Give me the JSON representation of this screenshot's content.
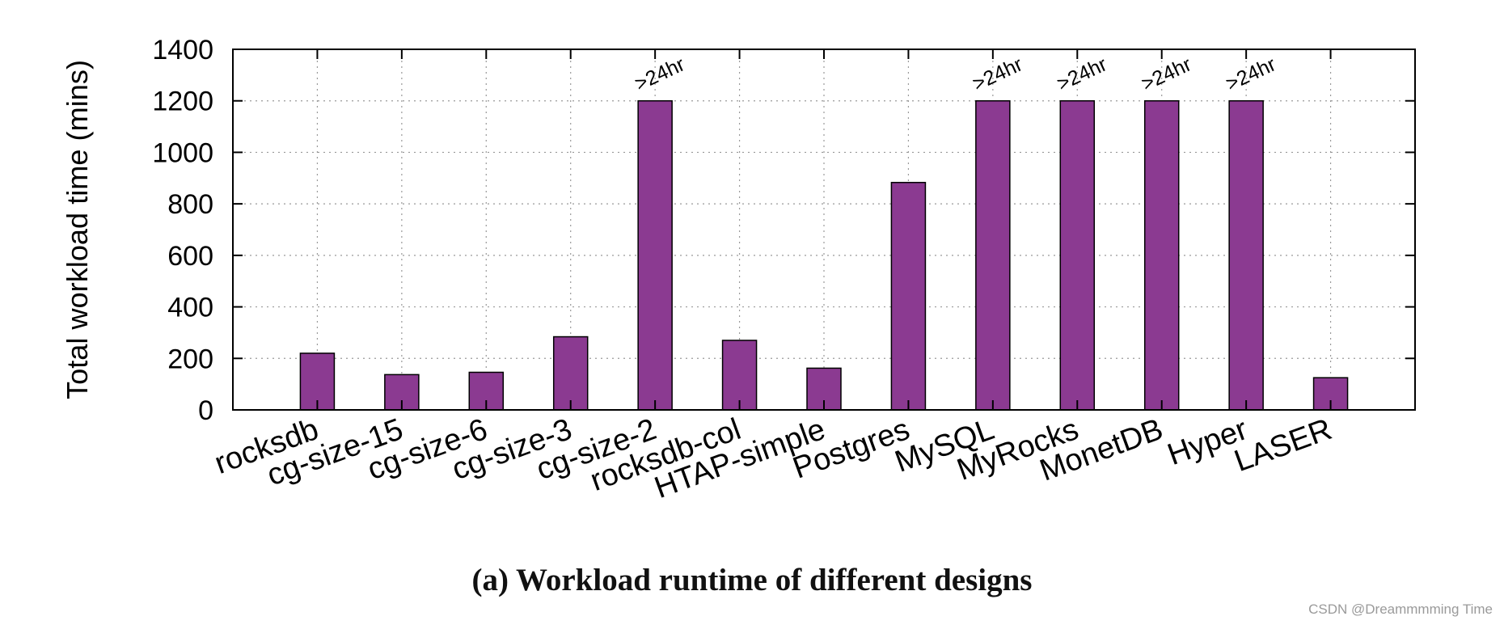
{
  "chart_data": {
    "type": "bar",
    "ylabel": "Total workload time (mins)",
    "xlabel": "",
    "ylim": [
      0,
      1400
    ],
    "yticks": [
      0,
      200,
      400,
      600,
      800,
      1000,
      1200,
      1400
    ],
    "grid": true,
    "categories": [
      "rocksdb",
      "cg-size-15",
      "cg-size-6",
      "cg-size-3",
      "cg-size-2",
      "rocksdb-col",
      "HTAP-simple",
      "Postgres",
      "MySQL",
      "MyRocks",
      "MonetDB",
      "Hyper",
      "LASER"
    ],
    "values": [
      220,
      137,
      146,
      284,
      1200,
      270,
      162,
      883,
      1200,
      1200,
      1200,
      1200,
      125
    ],
    "annotations": [
      "",
      "",
      "",
      "",
      ">24hr",
      "",
      "",
      "",
      ">24hr",
      ">24hr",
      ">24hr",
      ">24hr",
      ""
    ],
    "bar_color": "#8b3a91"
  },
  "caption": "(a) Workload runtime of different designs",
  "watermark": "CSDN @Dreammmming Time"
}
